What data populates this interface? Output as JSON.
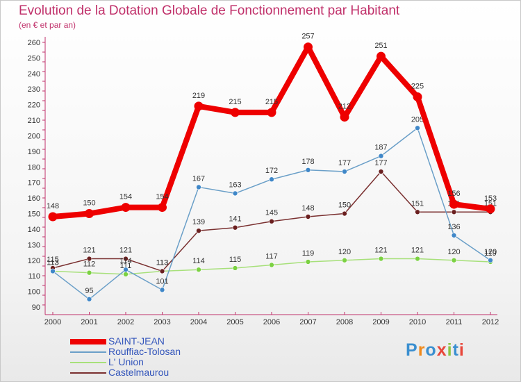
{
  "title": "Evolution de la Dotation Globale de Fonctionnement par Habitant",
  "subtitle": "(en € et par an)",
  "logo": "Proxiti",
  "colors": {
    "title": "#c0306a",
    "axis": "#c0306a",
    "saint_jean": "#ee0000",
    "rouffiac": "#6a9fc8",
    "lunion": "#99dd66",
    "castelmaurou": "#702828"
  },
  "chart_data": {
    "type": "line",
    "title": "Evolution de la Dotation Globale de Fonctionnement par Habitant",
    "subtitle": "(en € et par an)",
    "x": [
      2000,
      2001,
      2002,
      2003,
      2004,
      2005,
      2006,
      2007,
      2008,
      2009,
      2010,
      2011,
      2012
    ],
    "ylim": [
      90,
      260
    ],
    "yticks": [
      90,
      100,
      110,
      120,
      130,
      140,
      150,
      160,
      170,
      180,
      190,
      200,
      210,
      220,
      230,
      240,
      250,
      260
    ],
    "grid": false,
    "legend_position": "bottom-left",
    "series": [
      {
        "name": "SAINT-JEAN",
        "values": [
          148,
          150,
          154,
          154,
          219,
          215,
          215,
          257,
          212,
          251,
          225,
          156,
          153
        ],
        "color": "#ee0000"
      },
      {
        "name": "Rouffiac-Tolosan",
        "values": [
          113,
          95,
          114,
          101,
          167,
          163,
          172,
          178,
          177,
          187,
          205,
          136,
          120
        ],
        "color": "#6a9fc8"
      },
      {
        "name": "L' Union",
        "values": [
          113,
          112,
          111,
          113,
          114,
          115,
          117,
          119,
          120,
          121,
          121,
          120,
          119
        ],
        "color": "#99dd66"
      },
      {
        "name": "Castelmaurou",
        "values": [
          115,
          121,
          121,
          113,
          139,
          141,
          145,
          148,
          150,
          177,
          151,
          151,
          151
        ],
        "color": "#702828"
      }
    ]
  }
}
